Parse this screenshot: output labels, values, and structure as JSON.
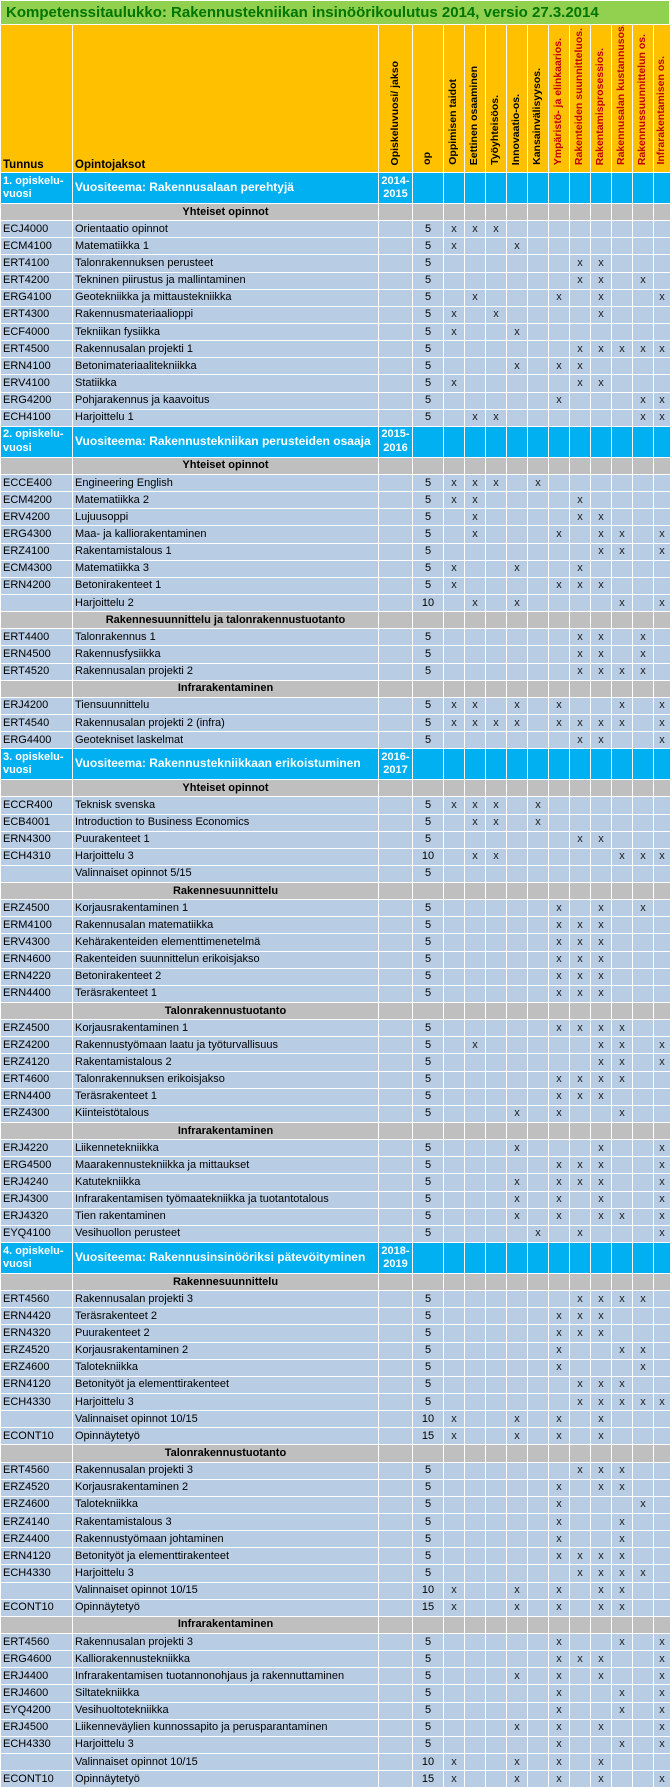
{
  "title": "Kompetenssitaulukko: Rakennustekniikan insinöörikoulutus 2014, versio 27.3.2014",
  "mark_symbol": "x",
  "colors": {
    "title_bar_bg": "#92D050",
    "title_text": "#007500",
    "header_bg": "#FFC000",
    "year_row_bg": "#00B0F0",
    "section_row_bg": "#BFBFBF",
    "course_row_bg": "#B8CCE4",
    "red_header_text": "#C00000",
    "gridline": "#FFFFFF"
  },
  "header": {
    "tunnus": "Tunnus",
    "opintojaksot": "Opintojaksot",
    "rotated": [
      {
        "label": "Opiskeluvuosi/ jakso",
        "color": "black"
      },
      {
        "label": "op",
        "color": "black"
      },
      {
        "label": "Oppimisen taidot",
        "color": "black"
      },
      {
        "label": "Eettinen osaaminen",
        "color": "black"
      },
      {
        "label": "Työyhteisöos.",
        "color": "black"
      },
      {
        "label": "Innovaatio-os.",
        "color": "black"
      },
      {
        "label": "Kansainvälisyysos.",
        "color": "black"
      },
      {
        "label": "Ympäristö- ja elinkaarios.",
        "color": "red"
      },
      {
        "label": "Rakenteiden suunnitteluos.",
        "color": "red"
      },
      {
        "label": "Rakentamisprosessios.",
        "color": "red"
      },
      {
        "label": "Rakennusalan kustannusos.",
        "color": "red"
      },
      {
        "label": "Rakennussuunnittelun os.",
        "color": "red"
      },
      {
        "label": "Infrarakentamisen os.",
        "color": "red"
      }
    ]
  },
  "competence_count": 11,
  "rows": [
    {
      "type": "year",
      "tunnus_lines": [
        "1. opiskelu-",
        "vuosi"
      ],
      "theme": "Vuositeema: Rakennusalaan perehtyjä",
      "period_lines": [
        "2014-",
        "2015"
      ]
    },
    {
      "type": "section",
      "label": "Yhteiset opinnot"
    },
    {
      "type": "course",
      "tunnus": "ECJ4000",
      "name": "Orientaatio opinnot",
      "op": "5",
      "marks": [
        1,
        2,
        3
      ]
    },
    {
      "type": "course",
      "tunnus": "ECM4100",
      "name": "Matematiikka 1",
      "op": "5",
      "marks": [
        1,
        4
      ]
    },
    {
      "type": "course",
      "tunnus": "ERT4100",
      "name": "Talonrakennuksen perusteet",
      "op": "5",
      "marks": [
        7,
        8
      ]
    },
    {
      "type": "course",
      "tunnus": "ERT4200",
      "name": "Tekninen piirustus ja mallintaminen",
      "op": "5",
      "marks": [
        7,
        8,
        10
      ]
    },
    {
      "type": "course",
      "tunnus": "ERG4100",
      "name": "Geotekniikka ja mittaustekniikka",
      "op": "5",
      "marks": [
        2,
        6,
        8,
        11
      ]
    },
    {
      "type": "course",
      "tunnus": "ERT4300",
      "name": "Rakennusmateriaalioppi",
      "op": "5",
      "marks": [
        1,
        3,
        8
      ]
    },
    {
      "type": "course",
      "tunnus": "ECF4000",
      "name": "Tekniikan fysiikka",
      "op": "5",
      "marks": [
        1,
        4
      ]
    },
    {
      "type": "course",
      "tunnus": "ERT4500",
      "name": "Rakennusalan projekti 1",
      "op": "5",
      "marks": [
        7,
        8,
        9,
        10,
        11
      ]
    },
    {
      "type": "course",
      "tunnus": "ERN4100",
      "name": "Betonimateriaalitekniikka",
      "op": "5",
      "marks": [
        4,
        6,
        7
      ]
    },
    {
      "type": "course",
      "tunnus": "ERV4100",
      "name": "Statiikka",
      "op": "5",
      "marks": [
        1,
        7,
        8
      ]
    },
    {
      "type": "course",
      "tunnus": "ERG4200",
      "name": "Pohjarakennus ja kaavoitus",
      "op": "5",
      "marks": [
        6,
        10,
        11
      ]
    },
    {
      "type": "course",
      "tunnus": "ECH4100",
      "name": "Harjoittelu 1",
      "op": "5",
      "marks": [
        2,
        3,
        10,
        11
      ]
    },
    {
      "type": "year",
      "tunnus_lines": [
        "2. opiskelu-",
        "vuosi"
      ],
      "theme": "Vuositeema: Rakennustekniikan perusteiden osaaja",
      "period_lines": [
        "2015-",
        "2016"
      ]
    },
    {
      "type": "section",
      "label": "Yhteiset opinnot"
    },
    {
      "type": "course",
      "tunnus": "ECCE400",
      "name": "Engineering English",
      "op": "5",
      "marks": [
        1,
        2,
        3,
        5
      ]
    },
    {
      "type": "course",
      "tunnus": "ECM4200",
      "name": "Matematiikka 2",
      "op": "5",
      "marks": [
        1,
        2,
        7
      ]
    },
    {
      "type": "course",
      "tunnus": "ERV4200",
      "name": "Lujuusoppi",
      "op": "5",
      "marks": [
        2,
        7,
        8
      ]
    },
    {
      "type": "course",
      "tunnus": "ERG4300",
      "name": "Maa- ja kalliorakentaminen",
      "op": "5",
      "marks": [
        2,
        6,
        8,
        9,
        11
      ]
    },
    {
      "type": "course",
      "tunnus": "ERZ4100",
      "name": "Rakentamistalous 1",
      "op": "5",
      "marks": [
        8,
        9,
        11
      ]
    },
    {
      "type": "course",
      "tunnus": "ECM4300",
      "name": "Matematiikka 3",
      "op": "5",
      "marks": [
        1,
        4,
        7
      ]
    },
    {
      "type": "course",
      "tunnus": "ERN4200",
      "name": "Betonirakenteet 1",
      "op": "5",
      "marks": [
        1,
        6,
        7,
        8
      ]
    },
    {
      "type": "course",
      "tunnus": "",
      "name": "Harjoittelu 2",
      "op": "10",
      "marks": [
        2,
        4,
        9,
        11
      ]
    },
    {
      "type": "section",
      "label": "Rakennesuunnittelu ja talonrakennustuotanto"
    },
    {
      "type": "course",
      "tunnus": "ERT4400",
      "name": "Talonrakennus 1",
      "op": "5",
      "marks": [
        7,
        8,
        10
      ]
    },
    {
      "type": "course",
      "tunnus": "ERN4500",
      "name": "Rakennusfysiikka",
      "op": "5",
      "marks": [
        7,
        8,
        10
      ]
    },
    {
      "type": "course",
      "tunnus": "ERT4520",
      "name": "Rakennusalan projekti 2",
      "op": "5",
      "marks": [
        7,
        8,
        9,
        10
      ]
    },
    {
      "type": "section",
      "label": "Infrarakentaminen"
    },
    {
      "type": "course",
      "tunnus": "ERJ4200",
      "name": "Tiensuunnittelu",
      "op": "5",
      "marks": [
        1,
        2,
        4,
        6,
        9,
        11
      ]
    },
    {
      "type": "course",
      "tunnus": "ERT4540",
      "name": "Rakennusalan projekti 2 (infra)",
      "op": "5",
      "marks": [
        1,
        2,
        3,
        4,
        6,
        7,
        8,
        9,
        11
      ]
    },
    {
      "type": "course",
      "tunnus": "ERG4400",
      "name": "Geotekniset laskelmat",
      "op": "5",
      "marks": [
        7,
        8,
        11
      ]
    },
    {
      "type": "year",
      "tunnus_lines": [
        "3. opiskelu-",
        "vuosi"
      ],
      "theme": "Vuositeema: Rakennustekniikkaan erikoistuminen",
      "period_lines": [
        "2016-",
        "2017"
      ]
    },
    {
      "type": "section",
      "label": "Yhteiset opinnot"
    },
    {
      "type": "course",
      "tunnus": "ECCR400",
      "name": "Teknisk svenska",
      "op": "5",
      "marks": [
        1,
        2,
        3,
        5
      ]
    },
    {
      "type": "course",
      "tunnus": "ECB4001",
      "name": "Introduction to Business Economics",
      "op": "5",
      "marks": [
        2,
        3,
        5
      ]
    },
    {
      "type": "course",
      "tunnus": "ERN4300",
      "name": "Puurakenteet 1",
      "op": "5",
      "marks": [
        7,
        8
      ]
    },
    {
      "type": "course",
      "tunnus": "ECH4310",
      "name": "Harjoittelu 3",
      "op": "10",
      "marks": [
        2,
        3,
        9,
        10,
        11
      ]
    },
    {
      "type": "course",
      "tunnus": "",
      "name": "Valinnaiset opinnot 5/15",
      "op": "5",
      "marks": []
    },
    {
      "type": "section",
      "label": "Rakennesuunnittelu"
    },
    {
      "type": "course",
      "tunnus": "ERZ4500",
      "name": "Korjausrakentaminen 1",
      "op": "5",
      "marks": [
        6,
        8,
        10
      ]
    },
    {
      "type": "course",
      "tunnus": "ERM4100",
      "name": "Rakennusalan matematiikka",
      "op": "5",
      "marks": [
        6,
        7,
        8
      ]
    },
    {
      "type": "course",
      "tunnus": "ERV4300",
      "name": "Kehärakenteiden elementtimenetelmä",
      "op": "5",
      "marks": [
        6,
        7,
        8
      ]
    },
    {
      "type": "course",
      "tunnus": "ERN4600",
      "name": "Rakenteiden suunnittelun erikoisjakso",
      "op": "5",
      "marks": [
        6,
        7,
        8
      ]
    },
    {
      "type": "course",
      "tunnus": "ERN4220",
      "name": "Betonirakenteet 2",
      "op": "5",
      "marks": [
        6,
        7,
        8
      ]
    },
    {
      "type": "course",
      "tunnus": "ERN4400",
      "name": "Teräsrakenteet 1",
      "op": "5",
      "marks": [
        6,
        7,
        8
      ]
    },
    {
      "type": "section",
      "label": "Talonrakennustuotanto"
    },
    {
      "type": "course",
      "tunnus": "ERZ4500",
      "name": "Korjausrakentaminen 1",
      "op": "5",
      "marks": [
        6,
        7,
        8,
        9
      ]
    },
    {
      "type": "course",
      "tunnus": "ERZ4200",
      "name": "Rakennustyömaan laatu ja työturvallisuus",
      "op": "5",
      "marks": [
        2,
        8,
        9,
        11
      ]
    },
    {
      "type": "course",
      "tunnus": "ERZ4120",
      "name": "Rakentamistalous 2",
      "op": "5",
      "marks": [
        8,
        9,
        11
      ]
    },
    {
      "type": "course",
      "tunnus": "ERT4600",
      "name": "Talonrakennuksen erikoisjakso",
      "op": "5",
      "marks": [
        6,
        7,
        8,
        9
      ]
    },
    {
      "type": "course",
      "tunnus": "ERN4400",
      "name": "Teräsrakenteet 1",
      "op": "5",
      "marks": [
        6,
        7,
        8
      ]
    },
    {
      "type": "course",
      "tunnus": "ERZ4300",
      "name": "Kiinteistötalous",
      "op": "5",
      "marks": [
        4,
        6,
        9
      ]
    },
    {
      "type": "section",
      "label": "Infrarakentaminen"
    },
    {
      "type": "course",
      "tunnus": "ERJ4220",
      "name": "Liikennetekniikka",
      "op": "5",
      "marks": [
        4,
        8,
        11
      ]
    },
    {
      "type": "course",
      "tunnus": "ERG4500",
      "name": "Maarakennustekniikka ja mittaukset",
      "op": "5",
      "marks": [
        6,
        7,
        8,
        11
      ]
    },
    {
      "type": "course",
      "tunnus": "ERJ4240",
      "name": "Katutekniikka",
      "op": "5",
      "marks": [
        4,
        6,
        7,
        8,
        11
      ]
    },
    {
      "type": "course",
      "tunnus": "ERJ4300",
      "name": "Infrarakentamisen työmaatekniikka ja tuotantotalous",
      "op": "5",
      "marks": [
        4,
        6,
        8,
        11
      ]
    },
    {
      "type": "course",
      "tunnus": "ERJ4320",
      "name": "Tien rakentaminen",
      "op": "5",
      "marks": [
        4,
        6,
        8,
        9,
        11
      ]
    },
    {
      "type": "course",
      "tunnus": "EYQ4100",
      "name": "Vesihuollon perusteet",
      "op": "5",
      "marks": [
        5,
        7,
        11
      ]
    },
    {
      "type": "year",
      "tunnus_lines": [
        "4. opiskelu-",
        "vuosi"
      ],
      "theme": "Vuositeema: Rakennusinsinööriksi pätevöityminen",
      "period_lines": [
        "2018-",
        "2019"
      ]
    },
    {
      "type": "section",
      "label": "Rakennesuunnittelu"
    },
    {
      "type": "course",
      "tunnus": "ERT4560",
      "name": "Rakennusalan projekti 3",
      "op": "5",
      "marks": [
        7,
        8,
        9,
        10
      ]
    },
    {
      "type": "course",
      "tunnus": "ERN4420",
      "name": "Teräsrakenteet 2",
      "op": "5",
      "marks": [
        6,
        7,
        8
      ]
    },
    {
      "type": "course",
      "tunnus": "ERN4320",
      "name": "Puurakenteet 2",
      "op": "5",
      "marks": [
        6,
        7,
        8
      ]
    },
    {
      "type": "course",
      "tunnus": "ERZ4520",
      "name": "Korjausrakentaminen 2",
      "op": "5",
      "marks": [
        6,
        9,
        10
      ]
    },
    {
      "type": "course",
      "tunnus": "ERZ4600",
      "name": "Talotekniikka",
      "op": "5",
      "marks": [
        6,
        10
      ]
    },
    {
      "type": "course",
      "tunnus": "ERN4120",
      "name": "Betonityöt ja elementtirakenteet",
      "op": "5",
      "marks": [
        7,
        8,
        9
      ]
    },
    {
      "type": "course",
      "tunnus": "ECH4330",
      "name": "Harjoittelu 3",
      "op": "5",
      "marks": [
        7,
        8,
        9,
        10,
        11
      ]
    },
    {
      "type": "course",
      "tunnus": "",
      "name": "Valinnaiset opinnot 10/15",
      "op": "10",
      "marks": [
        1,
        4,
        6,
        8
      ]
    },
    {
      "type": "course",
      "tunnus": "ECONT10",
      "name": "Opinnäytetyö",
      "op": "15",
      "marks": [
        1,
        4,
        6,
        8
      ]
    },
    {
      "type": "section",
      "label": "Talonrakennustuotanto"
    },
    {
      "type": "course",
      "tunnus": "ERT4560",
      "name": "Rakennusalan projekti 3",
      "op": "5",
      "marks": [
        7,
        8,
        9
      ]
    },
    {
      "type": "course",
      "tunnus": "ERZ4520",
      "name": "Korjausrakentaminen 2",
      "op": "5",
      "marks": [
        6,
        8,
        9
      ]
    },
    {
      "type": "course",
      "tunnus": "ERZ4600",
      "name": "Talotekniikka",
      "op": "5",
      "marks": [
        6,
        10
      ]
    },
    {
      "type": "course",
      "tunnus": "ERZ4140",
      "name": "Rakentamistalous 3",
      "op": "5",
      "marks": [
        6,
        9
      ]
    },
    {
      "type": "course",
      "tunnus": "ERZ4400",
      "name": "Rakennustyömaan johtaminen",
      "op": "5",
      "marks": [
        6,
        9
      ]
    },
    {
      "type": "course",
      "tunnus": "ERN4120",
      "name": "Betonityöt ja elementtirakenteet",
      "op": "5",
      "marks": [
        6,
        7,
        8,
        9
      ]
    },
    {
      "type": "course",
      "tunnus": "ECH4330",
      "name": "Harjoittelu 3",
      "op": "5",
      "marks": [
        7,
        8,
        9,
        10
      ]
    },
    {
      "type": "course",
      "tunnus": "",
      "name": "Valinnaiset opinnot 10/15",
      "op": "10",
      "marks": [
        1,
        4,
        6,
        8,
        9
      ]
    },
    {
      "type": "course",
      "tunnus": "ECONT10",
      "name": "Opinnäytetyö",
      "op": "15",
      "marks": [
        1,
        4,
        6,
        8,
        9
      ]
    },
    {
      "type": "section",
      "label": "Infrarakentaminen"
    },
    {
      "type": "course",
      "tunnus": "ERT4560",
      "name": "Rakennusalan projekti 3",
      "op": "5",
      "marks": [
        6,
        9,
        11
      ]
    },
    {
      "type": "course",
      "tunnus": "ERG4600",
      "name": "Kalliorakennustekniikka",
      "op": "5",
      "marks": [
        6,
        7,
        8,
        11
      ]
    },
    {
      "type": "course",
      "tunnus": "ERJ4400",
      "name": "Infrarakentamisen tuotannonohjaus ja rakennuttaminen",
      "op": "5",
      "marks": [
        4,
        6,
        8,
        11
      ]
    },
    {
      "type": "course",
      "tunnus": "ERJ4600",
      "name": "Siltatekniikka",
      "op": "5",
      "marks": [
        6,
        9,
        11
      ]
    },
    {
      "type": "course",
      "tunnus": "EYQ4200",
      "name": "Vesihuoltotekniikka",
      "op": "5",
      "marks": [
        6,
        9,
        11
      ]
    },
    {
      "type": "course",
      "tunnus": "ERJ4500",
      "name": "Liikenneväylien kunnossapito ja perusparantaminen",
      "op": "5",
      "marks": [
        4,
        6,
        8,
        11
      ]
    },
    {
      "type": "course",
      "tunnus": "ECH4330",
      "name": "Harjoittelu 3",
      "op": "5",
      "marks": [
        6,
        9,
        11
      ]
    },
    {
      "type": "course",
      "tunnus": "",
      "name": "Valinnaiset opinnot 10/15",
      "op": "10",
      "marks": [
        1,
        4,
        6,
        8
      ]
    },
    {
      "type": "course",
      "tunnus": "ECONT10",
      "name": "Opinnäytetyö",
      "op": "15",
      "marks": [
        1,
        4,
        6,
        8,
        11
      ]
    }
  ]
}
